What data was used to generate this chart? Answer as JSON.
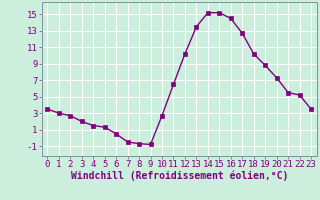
{
  "x": [
    0,
    1,
    2,
    3,
    4,
    5,
    6,
    7,
    8,
    9,
    10,
    11,
    12,
    13,
    14,
    15,
    16,
    17,
    18,
    19,
    20,
    21,
    22,
    23
  ],
  "y": [
    3.5,
    3.0,
    2.7,
    2.0,
    1.5,
    1.3,
    0.5,
    -0.5,
    -0.7,
    -0.8,
    2.7,
    6.5,
    10.2,
    13.5,
    15.2,
    15.2,
    14.5,
    12.7,
    10.2,
    8.8,
    7.3,
    5.5,
    5.2,
    3.5
  ],
  "line_color": "#800080",
  "marker": "s",
  "marker_size": 2.5,
  "bg_color": "#cceedd",
  "grid_color": "#b0d8cc",
  "xlabel": "Windchill (Refroidissement éolien,°C)",
  "xlabel_fontsize": 7,
  "xtick_labels": [
    "0",
    "1",
    "2",
    "3",
    "4",
    "5",
    "6",
    "7",
    "8",
    "9",
    "10",
    "11",
    "12",
    "13",
    "14",
    "15",
    "16",
    "17",
    "18",
    "19",
    "20",
    "21",
    "22",
    "23"
  ],
  "ytick_values": [
    -1,
    1,
    3,
    5,
    7,
    9,
    11,
    13,
    15
  ],
  "ylim": [
    -2.2,
    16.5
  ],
  "xlim": [
    -0.5,
    23.5
  ],
  "tick_fontsize": 6.5
}
